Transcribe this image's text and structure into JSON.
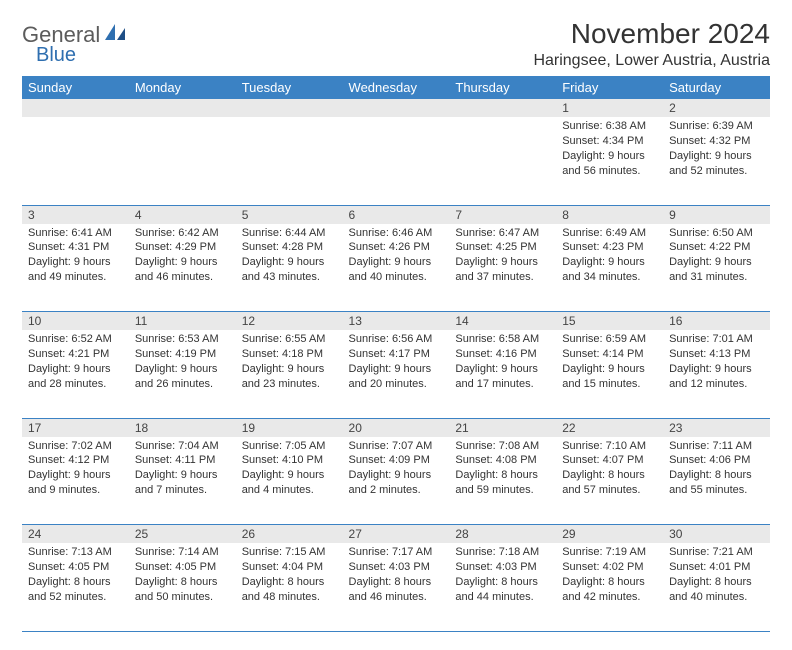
{
  "brand": {
    "word1": "General",
    "word2": "Blue"
  },
  "title": "November 2024",
  "location": "Haringsee, Lower Austria, Austria",
  "colors": {
    "header_bg": "#3b82c4",
    "header_fg": "#ffffff",
    "daynum_bg": "#e9e9e9",
    "rule": "#3b82c4",
    "text": "#333333",
    "logo_gray": "#5c5c5c",
    "logo_blue": "#2f6fb0"
  },
  "weekdays": [
    "Sunday",
    "Monday",
    "Tuesday",
    "Wednesday",
    "Thursday",
    "Friday",
    "Saturday"
  ],
  "weeks": [
    [
      {
        "n": "",
        "lines": []
      },
      {
        "n": "",
        "lines": []
      },
      {
        "n": "",
        "lines": []
      },
      {
        "n": "",
        "lines": []
      },
      {
        "n": "",
        "lines": []
      },
      {
        "n": "1",
        "lines": [
          "Sunrise: 6:38 AM",
          "Sunset: 4:34 PM",
          "Daylight: 9 hours and 56 minutes."
        ]
      },
      {
        "n": "2",
        "lines": [
          "Sunrise: 6:39 AM",
          "Sunset: 4:32 PM",
          "Daylight: 9 hours and 52 minutes."
        ]
      }
    ],
    [
      {
        "n": "3",
        "lines": [
          "Sunrise: 6:41 AM",
          "Sunset: 4:31 PM",
          "Daylight: 9 hours and 49 minutes."
        ]
      },
      {
        "n": "4",
        "lines": [
          "Sunrise: 6:42 AM",
          "Sunset: 4:29 PM",
          "Daylight: 9 hours and 46 minutes."
        ]
      },
      {
        "n": "5",
        "lines": [
          "Sunrise: 6:44 AM",
          "Sunset: 4:28 PM",
          "Daylight: 9 hours and 43 minutes."
        ]
      },
      {
        "n": "6",
        "lines": [
          "Sunrise: 6:46 AM",
          "Sunset: 4:26 PM",
          "Daylight: 9 hours and 40 minutes."
        ]
      },
      {
        "n": "7",
        "lines": [
          "Sunrise: 6:47 AM",
          "Sunset: 4:25 PM",
          "Daylight: 9 hours and 37 minutes."
        ]
      },
      {
        "n": "8",
        "lines": [
          "Sunrise: 6:49 AM",
          "Sunset: 4:23 PM",
          "Daylight: 9 hours and 34 minutes."
        ]
      },
      {
        "n": "9",
        "lines": [
          "Sunrise: 6:50 AM",
          "Sunset: 4:22 PM",
          "Daylight: 9 hours and 31 minutes."
        ]
      }
    ],
    [
      {
        "n": "10",
        "lines": [
          "Sunrise: 6:52 AM",
          "Sunset: 4:21 PM",
          "Daylight: 9 hours and 28 minutes."
        ]
      },
      {
        "n": "11",
        "lines": [
          "Sunrise: 6:53 AM",
          "Sunset: 4:19 PM",
          "Daylight: 9 hours and 26 minutes."
        ]
      },
      {
        "n": "12",
        "lines": [
          "Sunrise: 6:55 AM",
          "Sunset: 4:18 PM",
          "Daylight: 9 hours and 23 minutes."
        ]
      },
      {
        "n": "13",
        "lines": [
          "Sunrise: 6:56 AM",
          "Sunset: 4:17 PM",
          "Daylight: 9 hours and 20 minutes."
        ]
      },
      {
        "n": "14",
        "lines": [
          "Sunrise: 6:58 AM",
          "Sunset: 4:16 PM",
          "Daylight: 9 hours and 17 minutes."
        ]
      },
      {
        "n": "15",
        "lines": [
          "Sunrise: 6:59 AM",
          "Sunset: 4:14 PM",
          "Daylight: 9 hours and 15 minutes."
        ]
      },
      {
        "n": "16",
        "lines": [
          "Sunrise: 7:01 AM",
          "Sunset: 4:13 PM",
          "Daylight: 9 hours and 12 minutes."
        ]
      }
    ],
    [
      {
        "n": "17",
        "lines": [
          "Sunrise: 7:02 AM",
          "Sunset: 4:12 PM",
          "Daylight: 9 hours and 9 minutes."
        ]
      },
      {
        "n": "18",
        "lines": [
          "Sunrise: 7:04 AM",
          "Sunset: 4:11 PM",
          "Daylight: 9 hours and 7 minutes."
        ]
      },
      {
        "n": "19",
        "lines": [
          "Sunrise: 7:05 AM",
          "Sunset: 4:10 PM",
          "Daylight: 9 hours and 4 minutes."
        ]
      },
      {
        "n": "20",
        "lines": [
          "Sunrise: 7:07 AM",
          "Sunset: 4:09 PM",
          "Daylight: 9 hours and 2 minutes."
        ]
      },
      {
        "n": "21",
        "lines": [
          "Sunrise: 7:08 AM",
          "Sunset: 4:08 PM",
          "Daylight: 8 hours and 59 minutes."
        ]
      },
      {
        "n": "22",
        "lines": [
          "Sunrise: 7:10 AM",
          "Sunset: 4:07 PM",
          "Daylight: 8 hours and 57 minutes."
        ]
      },
      {
        "n": "23",
        "lines": [
          "Sunrise: 7:11 AM",
          "Sunset: 4:06 PM",
          "Daylight: 8 hours and 55 minutes."
        ]
      }
    ],
    [
      {
        "n": "24",
        "lines": [
          "Sunrise: 7:13 AM",
          "Sunset: 4:05 PM",
          "Daylight: 8 hours and 52 minutes."
        ]
      },
      {
        "n": "25",
        "lines": [
          "Sunrise: 7:14 AM",
          "Sunset: 4:05 PM",
          "Daylight: 8 hours and 50 minutes."
        ]
      },
      {
        "n": "26",
        "lines": [
          "Sunrise: 7:15 AM",
          "Sunset: 4:04 PM",
          "Daylight: 8 hours and 48 minutes."
        ]
      },
      {
        "n": "27",
        "lines": [
          "Sunrise: 7:17 AM",
          "Sunset: 4:03 PM",
          "Daylight: 8 hours and 46 minutes."
        ]
      },
      {
        "n": "28",
        "lines": [
          "Sunrise: 7:18 AM",
          "Sunset: 4:03 PM",
          "Daylight: 8 hours and 44 minutes."
        ]
      },
      {
        "n": "29",
        "lines": [
          "Sunrise: 7:19 AM",
          "Sunset: 4:02 PM",
          "Daylight: 8 hours and 42 minutes."
        ]
      },
      {
        "n": "30",
        "lines": [
          "Sunrise: 7:21 AM",
          "Sunset: 4:01 PM",
          "Daylight: 8 hours and 40 minutes."
        ]
      }
    ]
  ]
}
